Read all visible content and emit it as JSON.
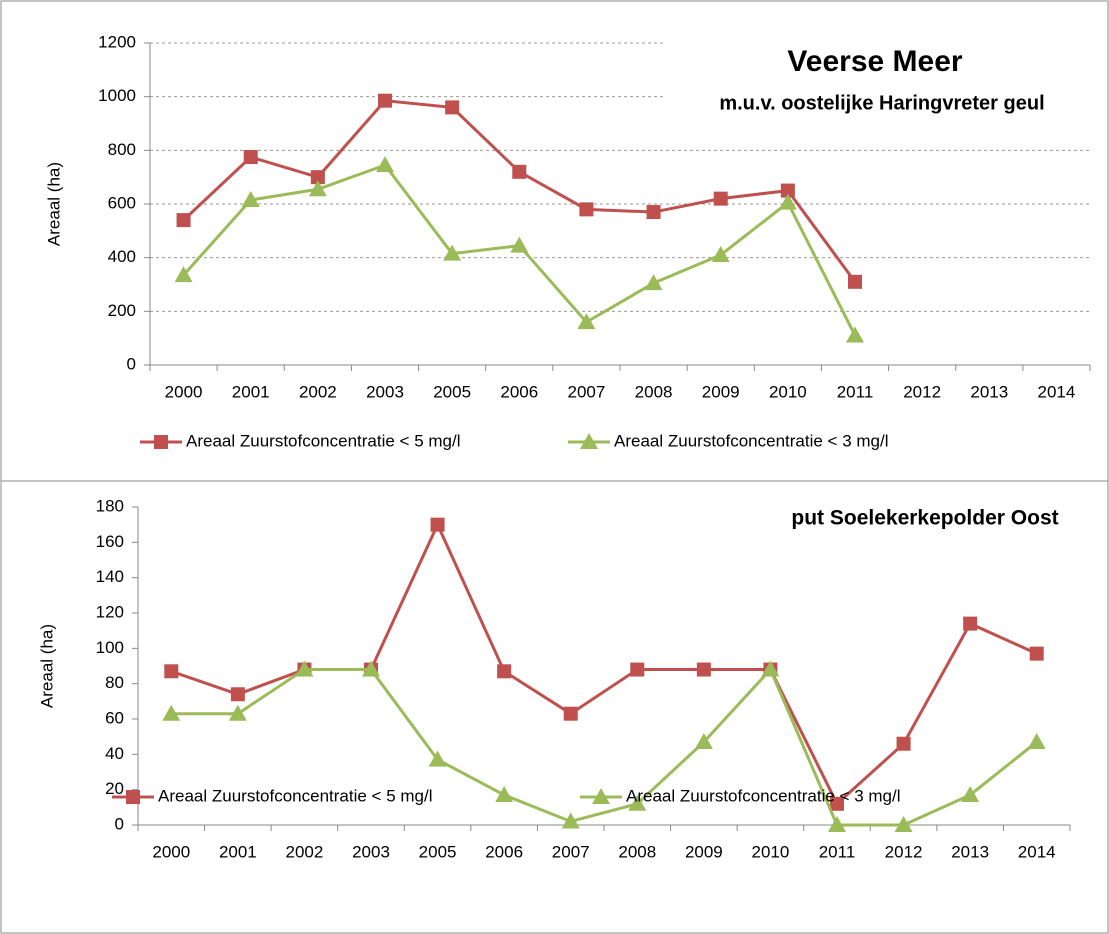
{
  "chart_data": [
    {
      "type": "line",
      "title": "Veerse Meer",
      "subtitle": "m.u.v. oostelijke Haringvreter geul",
      "y_label": "Areaal (ha)",
      "categories": [
        "2000",
        "2001",
        "2002",
        "2003",
        "2005",
        "2006",
        "2007",
        "2008",
        "2009",
        "2010",
        "2011",
        "2012",
        "2013",
        "2014"
      ],
      "series": [
        {
          "name": "Areaal Zuurstofconcentratie < 5 mg/l",
          "color": "#c0504d",
          "marker": "square",
          "values": [
            540,
            775,
            700,
            985,
            960,
            720,
            580,
            570,
            620,
            650,
            310,
            null,
            null,
            null
          ]
        },
        {
          "name": "Areaal Zuurstofconcentratie < 3 mg/l",
          "color": "#9bbb59",
          "marker": "triangle",
          "values": [
            335,
            615,
            655,
            745,
            415,
            445,
            160,
            305,
            410,
            605,
            110,
            null,
            null,
            null
          ]
        }
      ],
      "ylim": [
        0,
        1200
      ],
      "yticks": [
        0,
        200,
        400,
        600,
        800,
        1000,
        1200
      ],
      "grid": true
    },
    {
      "type": "line",
      "title": "put Soelekerkepolder  Oost",
      "y_label": "Areaal (ha)",
      "categories": [
        "2000",
        "2001",
        "2002",
        "2003",
        "2005",
        "2006",
        "2007",
        "2008",
        "2009",
        "2010",
        "2011",
        "2012",
        "2013",
        "2014"
      ],
      "series": [
        {
          "name": "Areaal Zuurstofconcentratie < 5 mg/l",
          "color": "#c0504d",
          "marker": "square",
          "values": [
            87,
            74,
            88,
            88,
            170,
            87,
            63,
            88,
            88,
            88,
            12,
            46,
            114,
            97
          ]
        },
        {
          "name": "Areaal Zuurstofconcentratie < 3 mg/l",
          "color": "#9bbb59",
          "marker": "triangle",
          "values": [
            63,
            63,
            88,
            88,
            37,
            17,
            2,
            12,
            47,
            88,
            0,
            0,
            17,
            47
          ]
        }
      ],
      "ylim": [
        0,
        180
      ],
      "yticks": [
        0,
        20,
        40,
        60,
        80,
        100,
        120,
        140,
        160,
        180
      ],
      "grid": false
    }
  ]
}
